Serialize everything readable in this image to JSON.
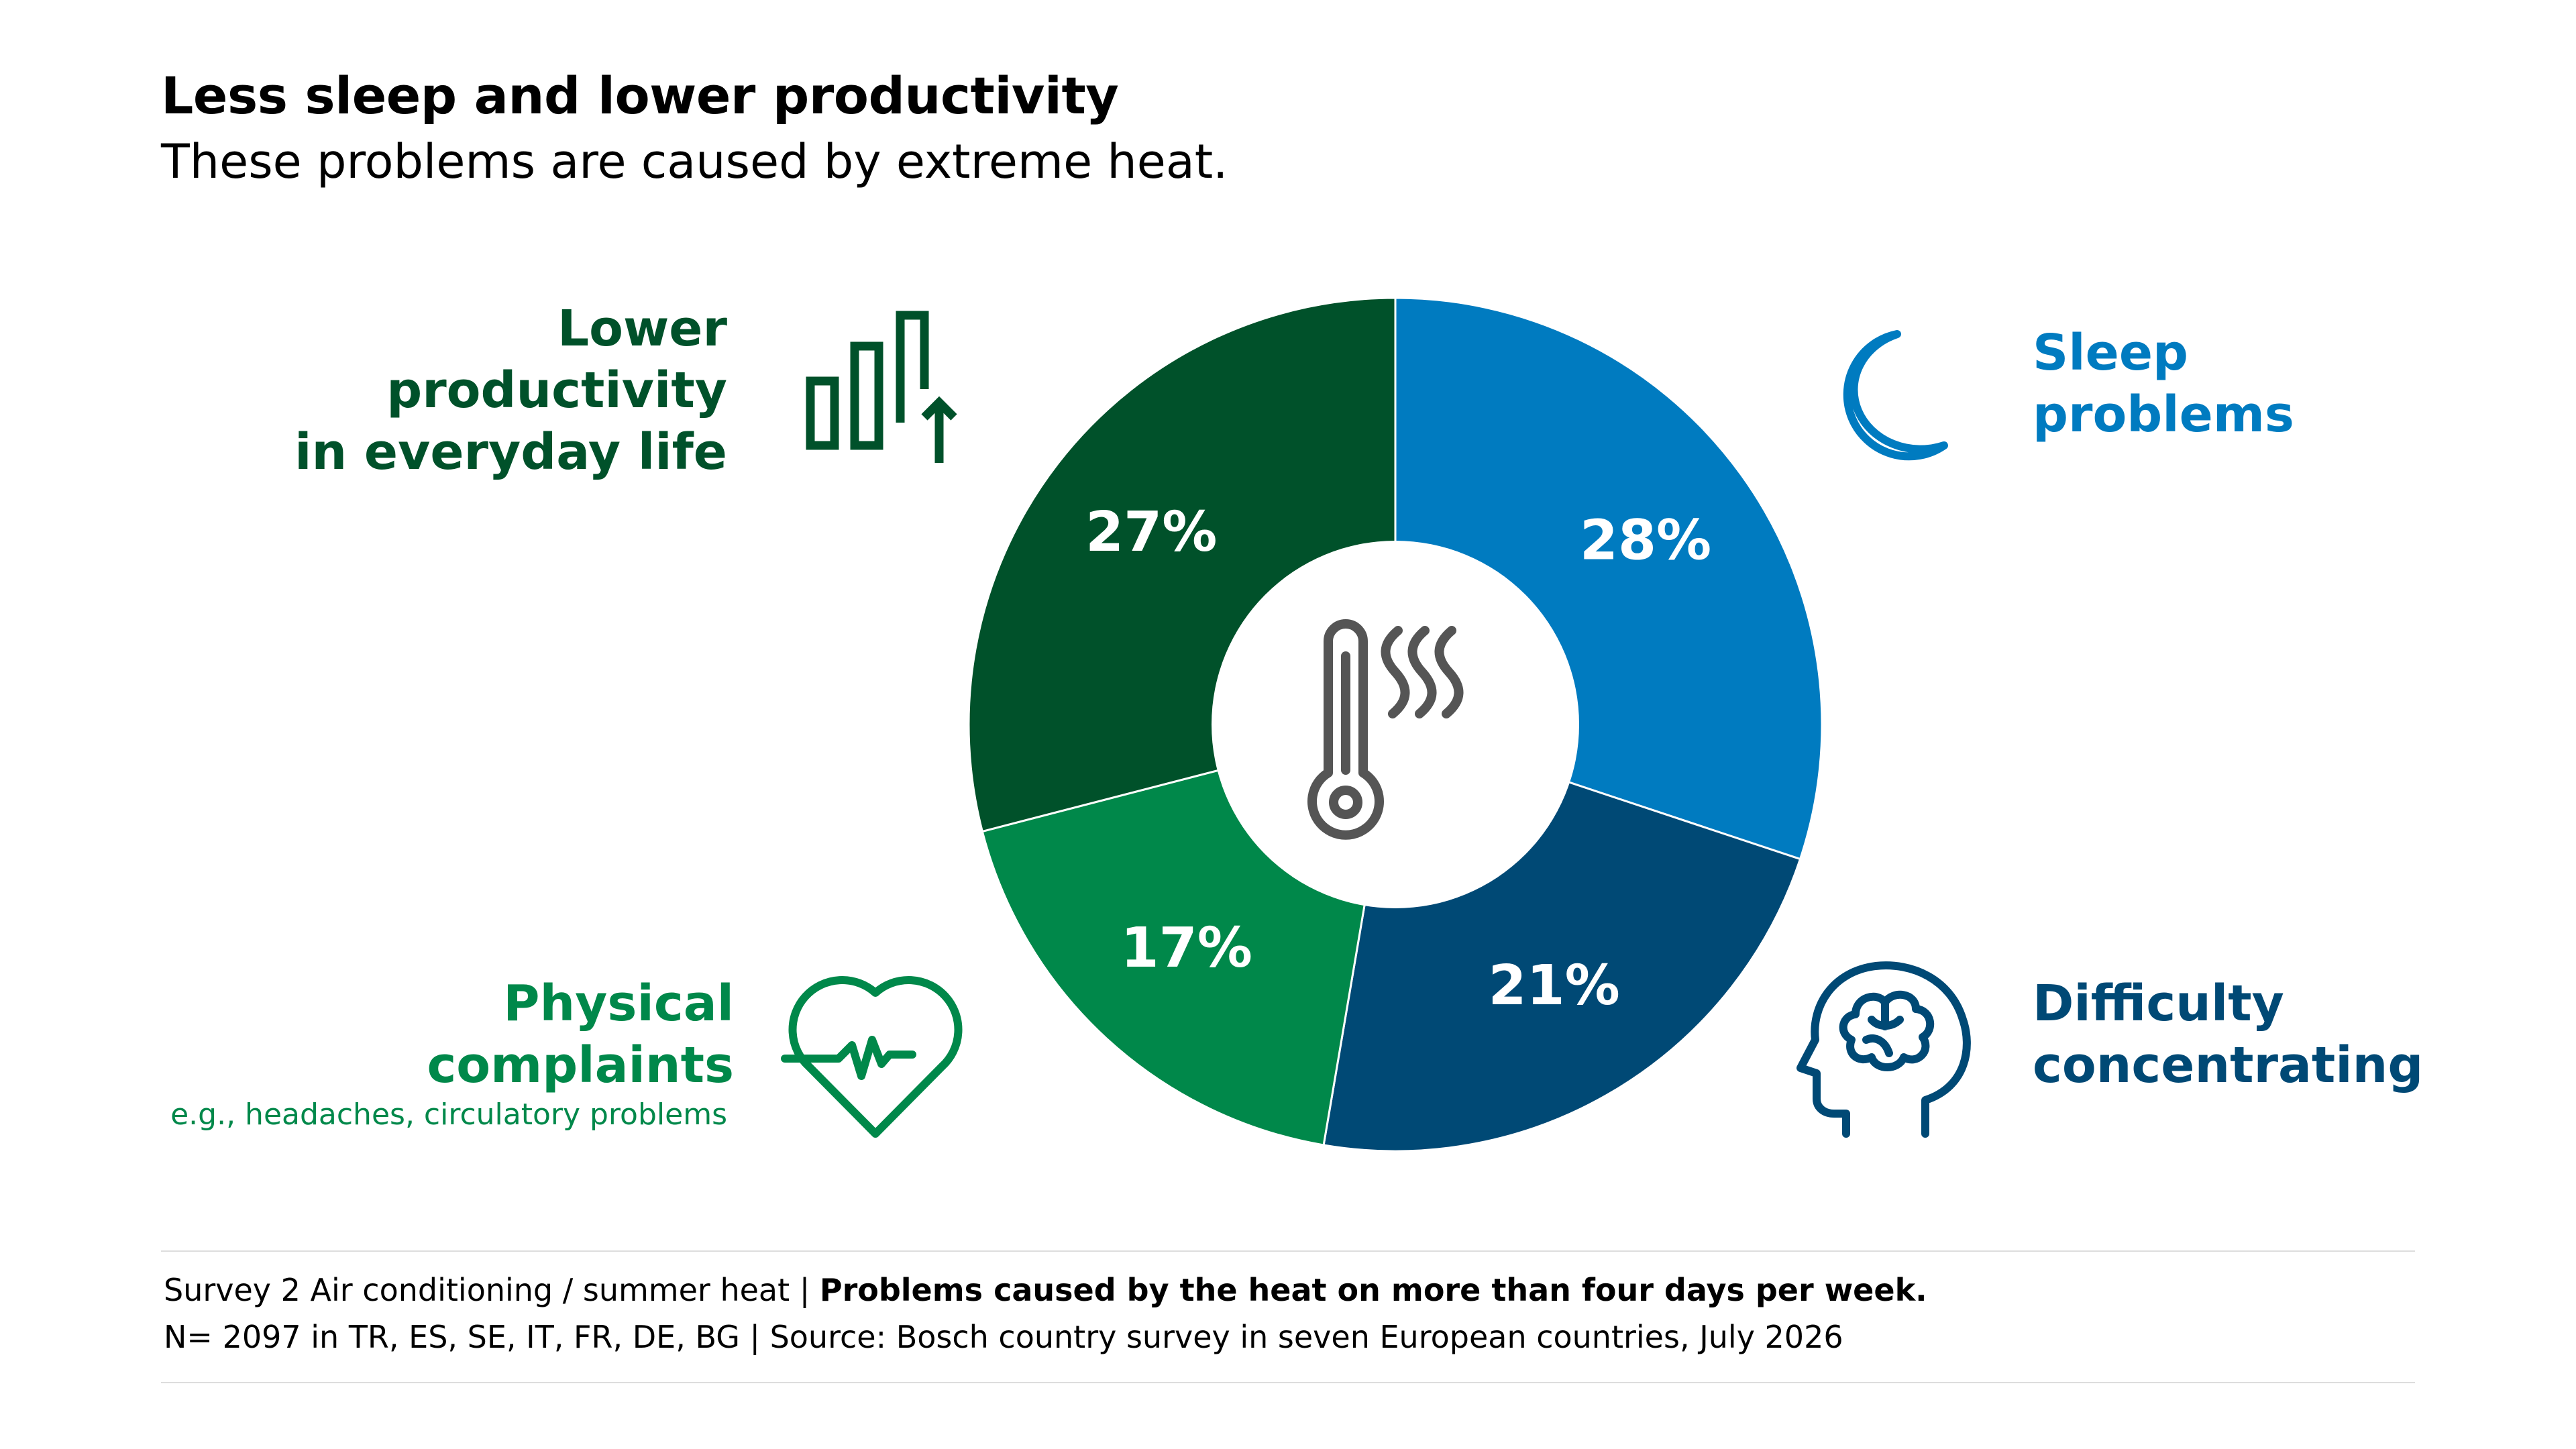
{
  "title": "Less sleep and lower productivity",
  "subtitle": "These problems are caused by extreme heat.",
  "chart_data": {
    "type": "pie",
    "donut": true,
    "categories": [
      "Sleep problems",
      "Difficulty concentrating",
      "Physical complaints",
      "Lower productivity in everyday life"
    ],
    "values": [
      28,
      21,
      17,
      27
    ],
    "value_labels": [
      "28%",
      "21%",
      "17%",
      "27%"
    ],
    "colors": [
      "#007BC0",
      "#004975",
      "#00884A",
      "#00512A"
    ],
    "center_icon": "thermometer-heat-icon"
  },
  "labels": {
    "sleep": {
      "lines": [
        "Sleep",
        "problems"
      ],
      "color": "#007BC0",
      "icon": "moon-icon"
    },
    "concentration": {
      "lines": [
        "Difficulty",
        "concentrating"
      ],
      "color": "#004975",
      "icon": "brain-head-icon"
    },
    "physical": {
      "lines": [
        "Physical",
        "complaints"
      ],
      "note": "e.g., headaches, circulatory problems",
      "color": "#00884A",
      "icon": "heart-pulse-icon"
    },
    "productivity": {
      "lines": [
        "Lower",
        "productivity",
        "in everyday life"
      ],
      "color": "#00512A",
      "icon": "bar-chart-arrow-icon"
    }
  },
  "footer": {
    "line1_plain": "Survey 2 Air conditioning / summer heat | ",
    "line1_bold": "Problems caused by the heat on more than four days per week.",
    "line2": "N= 2097 in TR, ES, SE, IT, FR, DE, BG | Source: Bosch country survey in seven European countries, July 2026"
  }
}
